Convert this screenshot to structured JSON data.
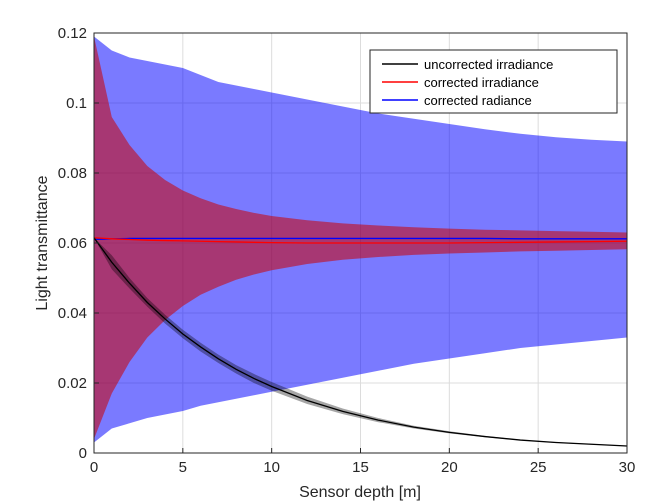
{
  "chart_data": {
    "type": "line",
    "title": "",
    "xlabel": "Sensor depth [m]",
    "ylabel": "Light transmittance",
    "xlim": [
      0,
      30
    ],
    "ylim": [
      0,
      0.12
    ],
    "xticks": [
      0,
      5,
      10,
      15,
      20,
      25,
      30
    ],
    "xtick_labels": [
      "0",
      "5",
      "10",
      "15",
      "20",
      "25",
      "30"
    ],
    "yticks": [
      0,
      0.02,
      0.04,
      0.06,
      0.08,
      0.1,
      0.12
    ],
    "ytick_labels": [
      "0",
      "0.02",
      "0.04",
      "0.06",
      "0.08",
      "0.1",
      "0.12"
    ],
    "grid": true,
    "legend_position": "top-right",
    "series": [
      {
        "name": "uncorrected irradiance",
        "color": "#000000",
        "band_color": "#000000",
        "band_opacity": 0.35,
        "x": [
          0,
          1,
          2,
          3,
          4,
          5,
          6,
          7,
          8,
          9,
          10,
          12,
          14,
          16,
          18,
          20,
          22,
          24,
          26,
          28,
          30
        ],
        "y": [
          0.0615,
          0.0545,
          0.0485,
          0.043,
          0.0383,
          0.034,
          0.0303,
          0.0269,
          0.0239,
          0.0213,
          0.019,
          0.015,
          0.0119,
          0.0094,
          0.0074,
          0.0059,
          0.0047,
          0.0037,
          0.003,
          0.0025,
          0.002
        ],
        "lower": [
          0.0615,
          0.0525,
          0.047,
          0.0418,
          0.037,
          0.0328,
          0.029,
          0.0257,
          0.0227,
          0.02,
          0.0178,
          0.014,
          0.0111,
          0.0088,
          0.007,
          0.0056,
          0.0045,
          0.0036,
          0.0029,
          0.0024,
          0.002
        ],
        "upper": [
          0.0615,
          0.0565,
          0.05,
          0.0443,
          0.0395,
          0.0352,
          0.0315,
          0.0281,
          0.0251,
          0.0226,
          0.0203,
          0.0161,
          0.0127,
          0.01,
          0.0078,
          0.0062,
          0.0049,
          0.0038,
          0.0031,
          0.0026,
          0.0021
        ]
      },
      {
        "name": "corrected irradiance",
        "color": "#ff0000",
        "band_color": "#cc0000",
        "band_opacity": 0.55,
        "x": [
          0,
          1,
          2,
          3,
          4,
          5,
          6,
          7,
          8,
          9,
          10,
          12,
          14,
          16,
          18,
          20,
          22,
          24,
          26,
          28,
          30
        ],
        "y": [
          0.0615,
          0.0612,
          0.061,
          0.0608,
          0.0607,
          0.0606,
          0.0605,
          0.0604,
          0.0603,
          0.0602,
          0.0601,
          0.06,
          0.06,
          0.06,
          0.06,
          0.06,
          0.0601,
          0.0602,
          0.0603,
          0.0604,
          0.0605
        ],
        "lower": [
          0.004,
          0.017,
          0.026,
          0.033,
          0.038,
          0.042,
          0.0452,
          0.0475,
          0.0495,
          0.051,
          0.0522,
          0.054,
          0.0552,
          0.056,
          0.0566,
          0.057,
          0.0573,
          0.0576,
          0.0578,
          0.058,
          0.0582
        ],
        "upper": [
          0.119,
          0.096,
          0.088,
          0.082,
          0.078,
          0.075,
          0.0728,
          0.071,
          0.0697,
          0.0686,
          0.0677,
          0.0665,
          0.0656,
          0.065,
          0.0645,
          0.0641,
          0.0638,
          0.0636,
          0.0634,
          0.0632,
          0.063
        ]
      },
      {
        "name": "corrected radiance",
        "color": "#0000ff",
        "band_color": "#0000ff",
        "band_opacity": 0.52,
        "x": [
          0,
          1,
          2,
          3,
          4,
          5,
          6,
          7,
          8,
          9,
          10,
          12,
          14,
          16,
          18,
          20,
          22,
          24,
          26,
          28,
          30
        ],
        "y": [
          0.061,
          0.0612,
          0.0613,
          0.0613,
          0.0613,
          0.0613,
          0.0613,
          0.0613,
          0.0613,
          0.0613,
          0.0613,
          0.0613,
          0.0613,
          0.0613,
          0.0613,
          0.0613,
          0.0613,
          0.0612,
          0.0612,
          0.0612,
          0.0612
        ],
        "lower": [
          0.003,
          0.007,
          0.0085,
          0.01,
          0.011,
          0.012,
          0.0135,
          0.0145,
          0.0155,
          0.0165,
          0.0175,
          0.0195,
          0.0215,
          0.0235,
          0.0255,
          0.027,
          0.0285,
          0.03,
          0.031,
          0.032,
          0.033
        ],
        "upper": [
          0.119,
          0.115,
          0.113,
          0.112,
          0.111,
          0.11,
          0.108,
          0.106,
          0.105,
          0.104,
          0.103,
          0.101,
          0.099,
          0.097,
          0.0955,
          0.094,
          0.0925,
          0.0912,
          0.0902,
          0.0895,
          0.089
        ]
      }
    ]
  }
}
